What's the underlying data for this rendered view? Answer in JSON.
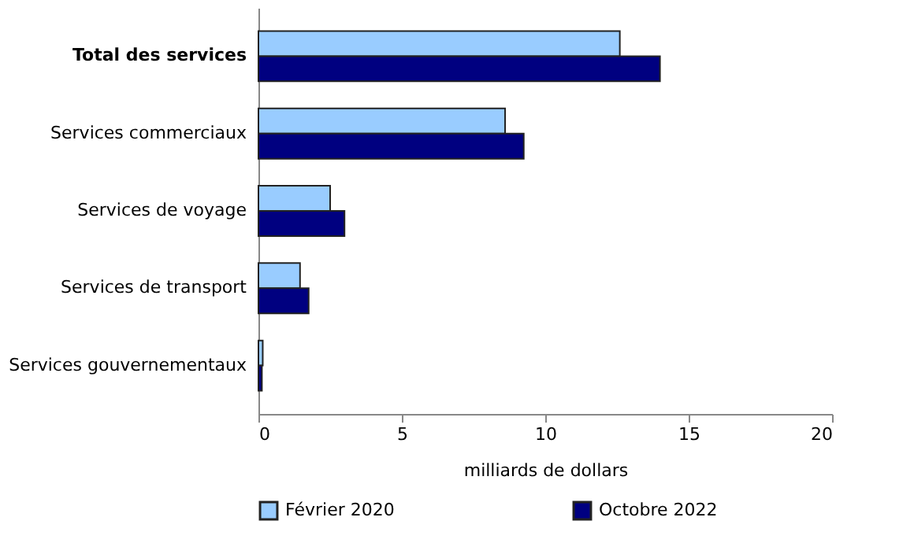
{
  "chart_data": {
    "type": "bar",
    "orientation": "horizontal",
    "xlabel": "milliards de dollars",
    "categories": [
      "Total des services",
      "Services commerciaux",
      "Services de voyage",
      "Services de transport",
      "Services gouvernementaux"
    ],
    "series": [
      {
        "name": "Février 2020",
        "color": "#99ccff",
        "values": [
          12.6,
          8.6,
          2.5,
          1.45,
          0.15
        ]
      },
      {
        "name": "Octobre 2022",
        "color": "#000080",
        "values": [
          14.0,
          9.25,
          3.0,
          1.75,
          0.12
        ]
      }
    ],
    "xlim": [
      0,
      20
    ],
    "xticks": [
      0,
      5,
      10,
      15,
      20
    ],
    "grid": false,
    "legend": "bottom"
  }
}
